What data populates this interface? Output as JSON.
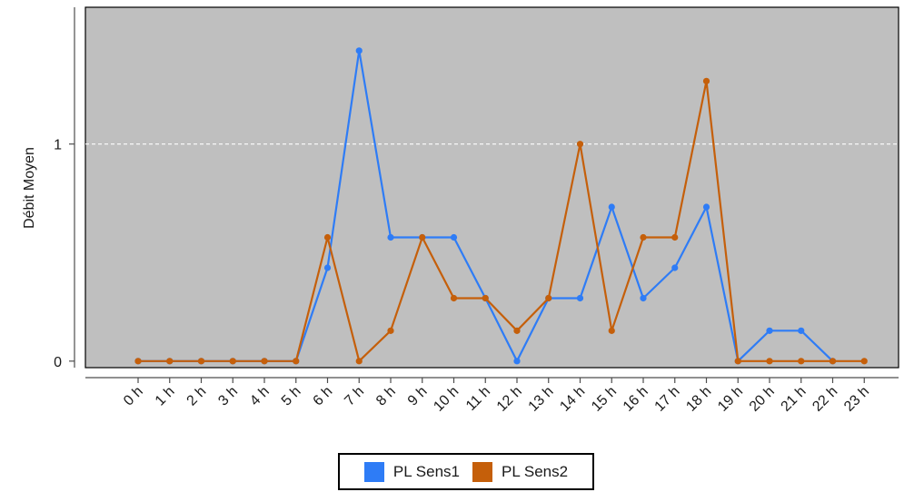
{
  "chart_data": {
    "type": "line",
    "title": "",
    "xlabel": "",
    "ylabel": "Débit Moyen",
    "categories": [
      "0 h",
      "1 h",
      "2 h",
      "3 h",
      "4 h",
      "5 h",
      "6 h",
      "7 h",
      "8 h",
      "9 h",
      "10 h",
      "11 h",
      "12 h",
      "13 h",
      "14 h",
      "15 h",
      "16 h",
      "17 h",
      "18 h",
      "19 h",
      "20 h",
      "21 h",
      "22 h",
      "23 h"
    ],
    "yticks": [
      "0",
      "1"
    ],
    "ylim": [
      -0.03,
      1.63
    ],
    "grid": "dashed horizontal line at y = 1",
    "legend_position": "bottom",
    "series": [
      {
        "name": "PL Sens1",
        "color": "#2e7cf6",
        "values": [
          0,
          0,
          0,
          0,
          0,
          0,
          0.43,
          1.43,
          0.57,
          0.57,
          0.57,
          0.29,
          0,
          0.29,
          0.29,
          0.71,
          0.29,
          0.43,
          0.71,
          0,
          0.14,
          0.14,
          0,
          null
        ]
      },
      {
        "name": "PL Sens2",
        "color": "#c55f0a",
        "values": [
          0,
          0,
          0,
          0,
          0,
          0,
          0.57,
          0,
          0.14,
          0.57,
          0.29,
          0.29,
          0.14,
          0.29,
          1.0,
          0.14,
          0.57,
          0.57,
          1.29,
          0,
          0,
          0,
          0,
          0
        ]
      }
    ]
  }
}
